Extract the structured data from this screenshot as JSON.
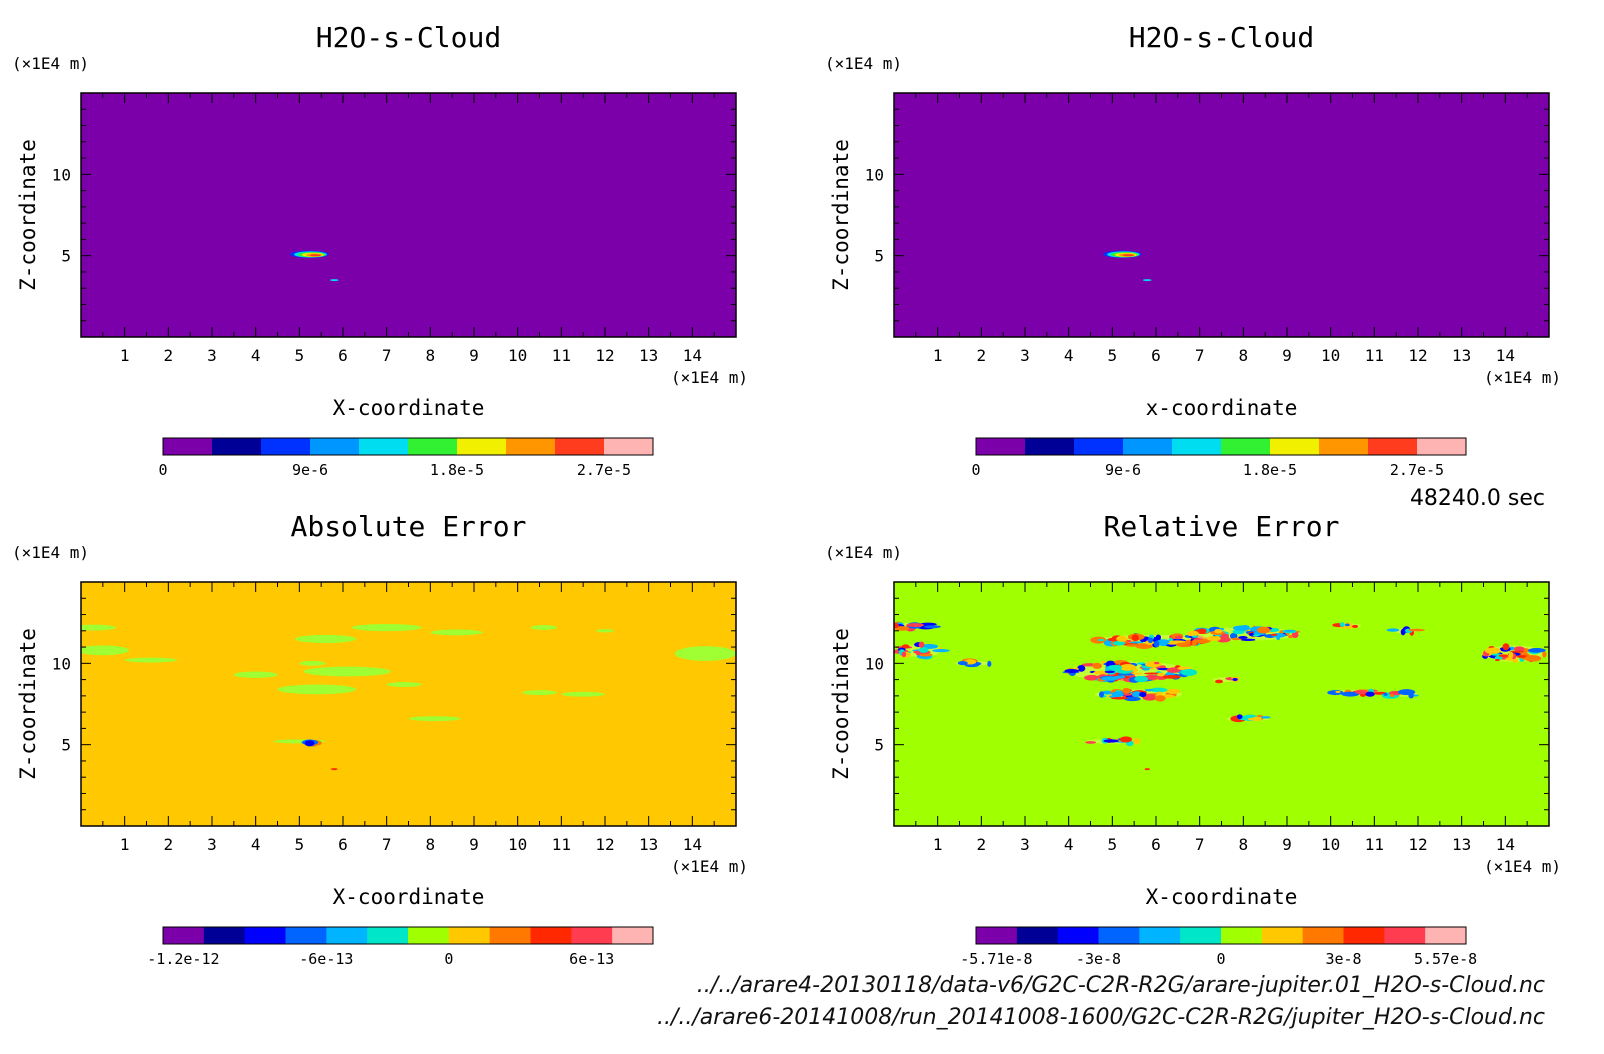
{
  "time_label": "48240.0 sec",
  "files": [
    "../../arare4-20130118/data-v6/G2C-C2R-R2G/arare-jupiter.01_H2O-s-Cloud.nc",
    "../../arare6-20141008/run_20141008-1600/G2C-C2R-R2G/jupiter_H2O-s-Cloud.nc"
  ],
  "chart_data": [
    {
      "type": "heatmap",
      "title": "H2O-s-Cloud",
      "xlabel": "X-coordinate",
      "ylabel": "Z-coordinate",
      "x_unit": "(×1E4 m)",
      "y_unit": "(×1E4 m)",
      "xlim": [
        0,
        15
      ],
      "ylim": [
        0,
        15
      ],
      "x_ticks": [
        1,
        2,
        3,
        4,
        5,
        6,
        7,
        8,
        9,
        10,
        11,
        12,
        13,
        14
      ],
      "y_ticks": [
        5,
        10
      ],
      "background_color": "#7c00aa",
      "colorbar": {
        "colors": [
          "#7c00aa",
          "#000096",
          "#0032ff",
          "#0096ff",
          "#00dcf0",
          "#32f032",
          "#f0f000",
          "#ff9600",
          "#ff3c1e",
          "#ffb4b4"
        ],
        "tick_labels": [
          "0",
          "9e-6",
          "1.8e-5",
          "2.7e-5"
        ],
        "tick_positions": [
          0,
          3,
          6,
          9
        ]
      },
      "features": [
        {
          "x": 5.2,
          "z": 5.1,
          "rx": 0.5,
          "rz": 0.25,
          "value": "max"
        },
        {
          "x": 5.8,
          "z": 3.5,
          "rx": 0.1,
          "rz": 0.05,
          "value": "low"
        }
      ]
    },
    {
      "type": "heatmap",
      "title": "H2O-s-Cloud",
      "xlabel": "x-coordinate",
      "ylabel": "Z-coordinate",
      "x_unit": "(×1E4 m)",
      "y_unit": "(×1E4 m)",
      "xlim": [
        0,
        15
      ],
      "ylim": [
        0,
        15
      ],
      "x_ticks": [
        1,
        2,
        3,
        4,
        5,
        6,
        7,
        8,
        9,
        10,
        11,
        12,
        13,
        14
      ],
      "y_ticks": [
        5,
        10
      ],
      "background_color": "#7c00aa",
      "colorbar": {
        "colors": [
          "#7c00aa",
          "#000096",
          "#0032ff",
          "#0096ff",
          "#00dcf0",
          "#32f032",
          "#f0f000",
          "#ff9600",
          "#ff3c1e",
          "#ffb4b4"
        ],
        "tick_labels": [
          "0",
          "9e-6",
          "1.8e-5",
          "2.7e-5"
        ],
        "tick_positions": [
          0,
          3,
          6,
          9
        ]
      },
      "features": [
        {
          "x": 5.2,
          "z": 5.1,
          "rx": 0.5,
          "rz": 0.25,
          "value": "max"
        },
        {
          "x": 5.8,
          "z": 3.5,
          "rx": 0.1,
          "rz": 0.05,
          "value": "low"
        }
      ]
    },
    {
      "type": "heatmap",
      "title": "Absolute Error",
      "xlabel": "X-coordinate",
      "ylabel": "Z-coordinate",
      "x_unit": "(×1E4 m)",
      "y_unit": "(×1E4 m)",
      "xlim": [
        0,
        15
      ],
      "ylim": [
        0,
        15
      ],
      "x_ticks": [
        1,
        2,
        3,
        4,
        5,
        6,
        7,
        8,
        9,
        10,
        11,
        12,
        13,
        14
      ],
      "y_ticks": [
        5,
        10
      ],
      "background_color": "#ffc800",
      "colorbar": {
        "colors": [
          "#7c00aa",
          "#000096",
          "#0000ff",
          "#0064ff",
          "#00b4ff",
          "#00e6c8",
          "#a0ff00",
          "#ffc800",
          "#ff7800",
          "#ff2800",
          "#ff3c50",
          "#ffb4b4"
        ],
        "tick_labels": [
          "-1.2e-12",
          "-6e-13",
          "0",
          "6e-13"
        ],
        "tick_positions": [
          0.5,
          4,
          7,
          10.5
        ]
      },
      "features": [
        {
          "x": 0.3,
          "z": 12.2,
          "rx": 0.5,
          "rz": 0.18,
          "value": "light-green"
        },
        {
          "x": 0.5,
          "z": 10.8,
          "rx": 0.6,
          "rz": 0.3,
          "value": "light-green"
        },
        {
          "x": 1.6,
          "z": 10.2,
          "rx": 0.6,
          "rz": 0.15,
          "value": "light-green"
        },
        {
          "x": 5.6,
          "z": 11.5,
          "rx": 0.7,
          "rz": 0.25,
          "value": "light-green"
        },
        {
          "x": 7.0,
          "z": 12.2,
          "rx": 0.8,
          "rz": 0.22,
          "value": "light-green"
        },
        {
          "x": 8.6,
          "z": 11.9,
          "rx": 0.6,
          "rz": 0.18,
          "value": "light-green"
        },
        {
          "x": 10.6,
          "z": 12.2,
          "rx": 0.3,
          "rz": 0.15,
          "value": "light-green"
        },
        {
          "x": 12.0,
          "z": 12.0,
          "rx": 0.2,
          "rz": 0.1,
          "value": "light-green"
        },
        {
          "x": 5.3,
          "z": 10.0,
          "rx": 0.3,
          "rz": 0.15,
          "value": "light-green"
        },
        {
          "x": 6.1,
          "z": 9.5,
          "rx": 1.0,
          "rz": 0.3,
          "value": "light-green"
        },
        {
          "x": 4.0,
          "z": 9.3,
          "rx": 0.5,
          "rz": 0.2,
          "value": "light-green"
        },
        {
          "x": 5.4,
          "z": 8.4,
          "rx": 0.9,
          "rz": 0.3,
          "value": "light-green"
        },
        {
          "x": 7.4,
          "z": 8.7,
          "rx": 0.4,
          "rz": 0.15,
          "value": "light-green"
        },
        {
          "x": 10.5,
          "z": 8.2,
          "rx": 0.4,
          "rz": 0.15,
          "value": "light-green"
        },
        {
          "x": 11.5,
          "z": 8.1,
          "rx": 0.5,
          "rz": 0.15,
          "value": "light-green"
        },
        {
          "x": 8.1,
          "z": 6.6,
          "rx": 0.6,
          "rz": 0.15,
          "value": "light-green"
        },
        {
          "x": 14.3,
          "z": 10.6,
          "rx": 0.7,
          "rz": 0.45,
          "value": "light-green"
        },
        {
          "x": 5.0,
          "z": 5.2,
          "rx": 0.6,
          "rz": 0.12,
          "value": "light-green"
        },
        {
          "x": 5.3,
          "z": 5.1,
          "rx": 0.08,
          "rz": 0.1,
          "value": "mixed"
        },
        {
          "x": 5.8,
          "z": 3.5,
          "rx": 0.08,
          "rz": 0.05,
          "value": "red"
        }
      ]
    },
    {
      "type": "heatmap",
      "title": "Relative Error",
      "xlabel": "X-coordinate",
      "ylabel": "Z-coordinate",
      "x_unit": "(×1E4 m)",
      "y_unit": "(×1E4 m)",
      "xlim": [
        0,
        15
      ],
      "ylim": [
        0,
        15
      ],
      "x_ticks": [
        1,
        2,
        3,
        4,
        5,
        6,
        7,
        8,
        9,
        10,
        11,
        12,
        13,
        14
      ],
      "y_ticks": [
        5,
        10
      ],
      "background_color": "#a0ff00",
      "colorbar": {
        "colors": [
          "#7c00aa",
          "#000096",
          "#0000ff",
          "#0064ff",
          "#00b4ff",
          "#00e6c8",
          "#a0ff00",
          "#ffc800",
          "#ff7800",
          "#ff2800",
          "#ff3c50",
          "#ffb4b4"
        ],
        "tick_labels": [
          "-5.71e-8",
          "-3e-8",
          "0",
          "3e-8",
          "5.57e-8"
        ],
        "tick_positions": [
          0.5,
          3,
          6,
          9,
          11.5
        ]
      },
      "features": [
        {
          "x": 0.4,
          "z": 12.3,
          "rx": 0.5,
          "rz": 0.2,
          "value": "mixed"
        },
        {
          "x": 0.6,
          "z": 10.8,
          "rx": 0.5,
          "rz": 0.4,
          "value": "mixed"
        },
        {
          "x": 1.8,
          "z": 10.0,
          "rx": 0.4,
          "rz": 0.15,
          "value": "mixed"
        },
        {
          "x": 5.9,
          "z": 11.4,
          "rx": 1.3,
          "rz": 0.35,
          "value": "mixed"
        },
        {
          "x": 8.0,
          "z": 11.8,
          "rx": 1.3,
          "rz": 0.4,
          "value": "mixed"
        },
        {
          "x": 10.4,
          "z": 12.3,
          "rx": 0.3,
          "rz": 0.15,
          "value": "mixed"
        },
        {
          "x": 11.7,
          "z": 12.0,
          "rx": 0.3,
          "rz": 0.15,
          "value": "mixed"
        },
        {
          "x": 5.4,
          "z": 9.5,
          "rx": 1.4,
          "rz": 0.6,
          "value": "mixed"
        },
        {
          "x": 5.6,
          "z": 8.1,
          "rx": 1.0,
          "rz": 0.3,
          "value": "mixed"
        },
        {
          "x": 7.6,
          "z": 9.0,
          "rx": 0.3,
          "rz": 0.15,
          "value": "mixed"
        },
        {
          "x": 10.6,
          "z": 8.2,
          "rx": 0.6,
          "rz": 0.18,
          "value": "mixed"
        },
        {
          "x": 11.6,
          "z": 8.1,
          "rx": 0.4,
          "rz": 0.15,
          "value": "mixed"
        },
        {
          "x": 8.1,
          "z": 6.6,
          "rx": 0.5,
          "rz": 0.15,
          "value": "mixed"
        },
        {
          "x": 14.2,
          "z": 10.6,
          "rx": 0.7,
          "rz": 0.5,
          "value": "mixed"
        },
        {
          "x": 5.0,
          "z": 5.2,
          "rx": 0.6,
          "rz": 0.15,
          "value": "mixed"
        },
        {
          "x": 5.8,
          "z": 3.5,
          "rx": 0.06,
          "rz": 0.04,
          "value": "red"
        }
      ]
    }
  ]
}
